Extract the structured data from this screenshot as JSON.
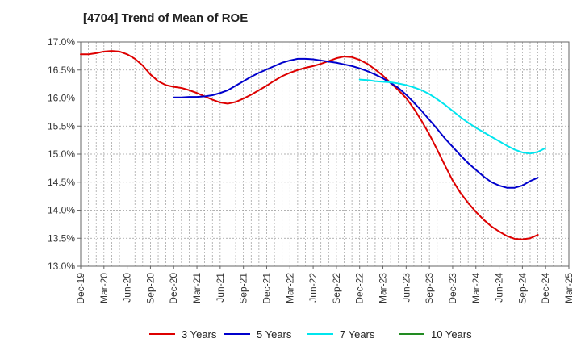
{
  "chart_data": {
    "type": "line",
    "title": "[4704]  Trend of Mean of ROE",
    "xlabel": "",
    "ylabel": "",
    "ylim": [
      13.0,
      17.0
    ],
    "yticks": [
      13.0,
      13.5,
      14.0,
      14.5,
      15.0,
      15.5,
      16.0,
      16.5,
      17.0
    ],
    "ytick_labels": [
      "13.0%",
      "13.5%",
      "14.0%",
      "14.5%",
      "15.0%",
      "15.5%",
      "16.0%",
      "16.5%",
      "17.0%"
    ],
    "x_tick_labels": [
      "Dec-19",
      "Mar-20",
      "Jun-20",
      "Sep-20",
      "Dec-20",
      "Mar-21",
      "Jun-21",
      "Sep-21",
      "Dec-21",
      "Mar-22",
      "Jun-22",
      "Sep-22",
      "Dec-22",
      "Mar-23",
      "Jun-23",
      "Sep-23",
      "Dec-23",
      "Mar-24",
      "Jun-24",
      "Sep-24",
      "Dec-24",
      "Mar-25"
    ],
    "x_months_total": 63,
    "grid": true,
    "legend_position": "bottom",
    "series": [
      {
        "name": "3 Years",
        "color": "#dd0000",
        "start_month": 0,
        "values": [
          16.78,
          16.78,
          16.8,
          16.83,
          16.84,
          16.83,
          16.78,
          16.7,
          16.58,
          16.42,
          16.3,
          16.23,
          16.2,
          16.18,
          16.14,
          16.09,
          16.03,
          15.97,
          15.92,
          15.9,
          15.93,
          15.99,
          16.06,
          16.14,
          16.22,
          16.31,
          16.39,
          16.45,
          16.5,
          16.54,
          16.57,
          16.61,
          16.66,
          16.71,
          16.74,
          16.73,
          16.68,
          16.61,
          16.51,
          16.4,
          16.27,
          16.14,
          16.0,
          15.81,
          15.59,
          15.35,
          15.08,
          14.8,
          14.53,
          14.31,
          14.13,
          13.97,
          13.83,
          13.71,
          13.62,
          13.54,
          13.49,
          13.48,
          13.5,
          13.56
        ]
      },
      {
        "name": "5 Years",
        "color": "#0000cc",
        "start_month": 12,
        "values": [
          16.01,
          16.01,
          16.02,
          16.02,
          16.03,
          16.05,
          16.09,
          16.14,
          16.22,
          16.3,
          16.38,
          16.45,
          16.51,
          16.57,
          16.63,
          16.67,
          16.7,
          16.7,
          16.69,
          16.67,
          16.65,
          16.63,
          16.6,
          16.57,
          16.53,
          16.48,
          16.42,
          16.35,
          16.27,
          16.18,
          16.06,
          15.92,
          15.77,
          15.61,
          15.45,
          15.28,
          15.13,
          14.98,
          14.84,
          14.72,
          14.6,
          14.5,
          14.44,
          14.4,
          14.4,
          14.44,
          14.52,
          14.58
        ]
      },
      {
        "name": "7 Years",
        "color": "#00e5ee",
        "start_month": 36,
        "values": [
          16.33,
          16.32,
          16.3,
          16.29,
          16.28,
          16.26,
          16.23,
          16.19,
          16.14,
          16.07,
          15.98,
          15.88,
          15.77,
          15.66,
          15.56,
          15.47,
          15.39,
          15.31,
          15.23,
          15.15,
          15.08,
          15.03,
          15.01,
          15.04,
          15.11
        ]
      },
      {
        "name": "10 Years",
        "color": "#228b22",
        "start_month": 0,
        "values": []
      }
    ]
  }
}
